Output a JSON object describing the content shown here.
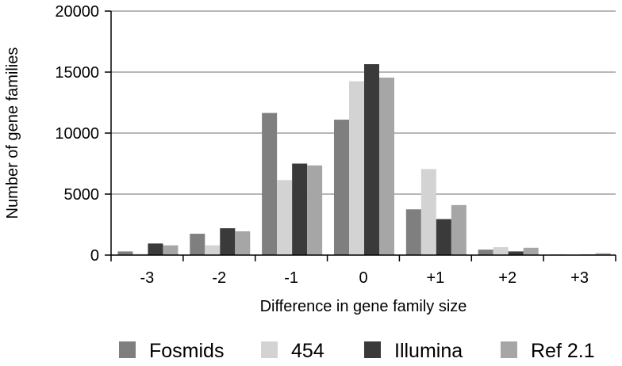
{
  "chart_data": {
    "type": "bar",
    "title": "",
    "xlabel": "Difference in gene family size",
    "ylabel": "Number of gene families",
    "categories": [
      "-3",
      "-2",
      "-1",
      "0",
      "+1",
      "+2",
      "+3"
    ],
    "ylim": [
      0,
      20000
    ],
    "yticks": [
      0,
      5000,
      10000,
      15000,
      20000
    ],
    "grid": true,
    "legend_position": "bottom",
    "series": [
      {
        "name": "Fosmids",
        "color": "#7f7f7f",
        "values": [
          300,
          1750,
          11650,
          11100,
          3750,
          450,
          50
        ]
      },
      {
        "name": "454",
        "color": "#d3d3d3",
        "values": [
          100,
          800,
          6150,
          14250,
          7050,
          650,
          50
        ]
      },
      {
        "name": "Illumina",
        "color": "#3a3a3a",
        "values": [
          950,
          2200,
          7500,
          15650,
          2950,
          300,
          50
        ]
      },
      {
        "name": "Ref 2.1",
        "color": "#a6a6a6",
        "values": [
          800,
          1950,
          7350,
          14550,
          4100,
          600,
          150
        ]
      }
    ]
  }
}
